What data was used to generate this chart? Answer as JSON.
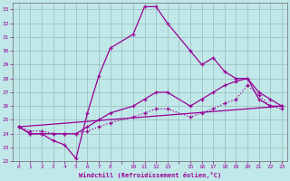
{
  "xlabel": "Windchill (Refroidissement éolien,°C)",
  "bg_color": "#c0e8e8",
  "grid_color": "#99bbbb",
  "line_color": "#990099",
  "ylim": [
    22,
    33.5
  ],
  "xlim": [
    -0.5,
    23.5
  ],
  "yticks": [
    22,
    23,
    24,
    25,
    26,
    27,
    28,
    29,
    30,
    31,
    32,
    33
  ],
  "xticks": [
    0,
    1,
    2,
    3,
    4,
    5,
    6,
    7,
    8,
    9,
    10,
    11,
    12,
    13,
    14,
    15,
    16,
    17,
    18,
    19,
    20,
    21,
    22,
    23
  ],
  "xtick_labels": [
    "0",
    "1",
    "2",
    "3",
    "4",
    "5",
    "6",
    "7",
    "8",
    "",
    "10",
    "11",
    "12",
    "13",
    "",
    "15",
    "16",
    "17",
    "18",
    "19",
    "20",
    "21",
    "22",
    "23"
  ],
  "line1_x": [
    0,
    1,
    2,
    3,
    4,
    5,
    6,
    7,
    8,
    10,
    11,
    12,
    13,
    15,
    16,
    17,
    18,
    19,
    20,
    21,
    22,
    23
  ],
  "line1_y": [
    24.5,
    24.0,
    24.0,
    23.5,
    23.2,
    22.2,
    25.5,
    28.2,
    30.2,
    31.2,
    33.2,
    33.2,
    32.0,
    30.0,
    29.0,
    29.5,
    28.5,
    28.0,
    28.0,
    26.5,
    26.0,
    26.0
  ],
  "line3_x": [
    0,
    1,
    2,
    3,
    4,
    5,
    6,
    7,
    8,
    10,
    11,
    12,
    13,
    15,
    16,
    17,
    18,
    19,
    20,
    21,
    22,
    23
  ],
  "line3_y": [
    24.5,
    24.0,
    24.0,
    24.0,
    24.0,
    24.0,
    24.5,
    25.0,
    25.5,
    26.0,
    26.5,
    27.0,
    27.0,
    26.0,
    26.5,
    27.0,
    27.5,
    27.8,
    28.0,
    27.0,
    26.5,
    26.0
  ],
  "line4_x": [
    0,
    1,
    2,
    3,
    4,
    5,
    6,
    7,
    8,
    10,
    11,
    12,
    13,
    15,
    16,
    17,
    18,
    19,
    20,
    21,
    22,
    23
  ],
  "line4_y": [
    24.5,
    24.2,
    24.2,
    24.0,
    24.0,
    24.0,
    24.2,
    24.5,
    24.8,
    25.2,
    25.5,
    25.8,
    25.8,
    25.2,
    25.5,
    25.8,
    26.2,
    26.5,
    27.5,
    26.8,
    26.0,
    25.8
  ],
  "line5_x": [
    0,
    23
  ],
  "line5_y": [
    24.5,
    26.0
  ]
}
